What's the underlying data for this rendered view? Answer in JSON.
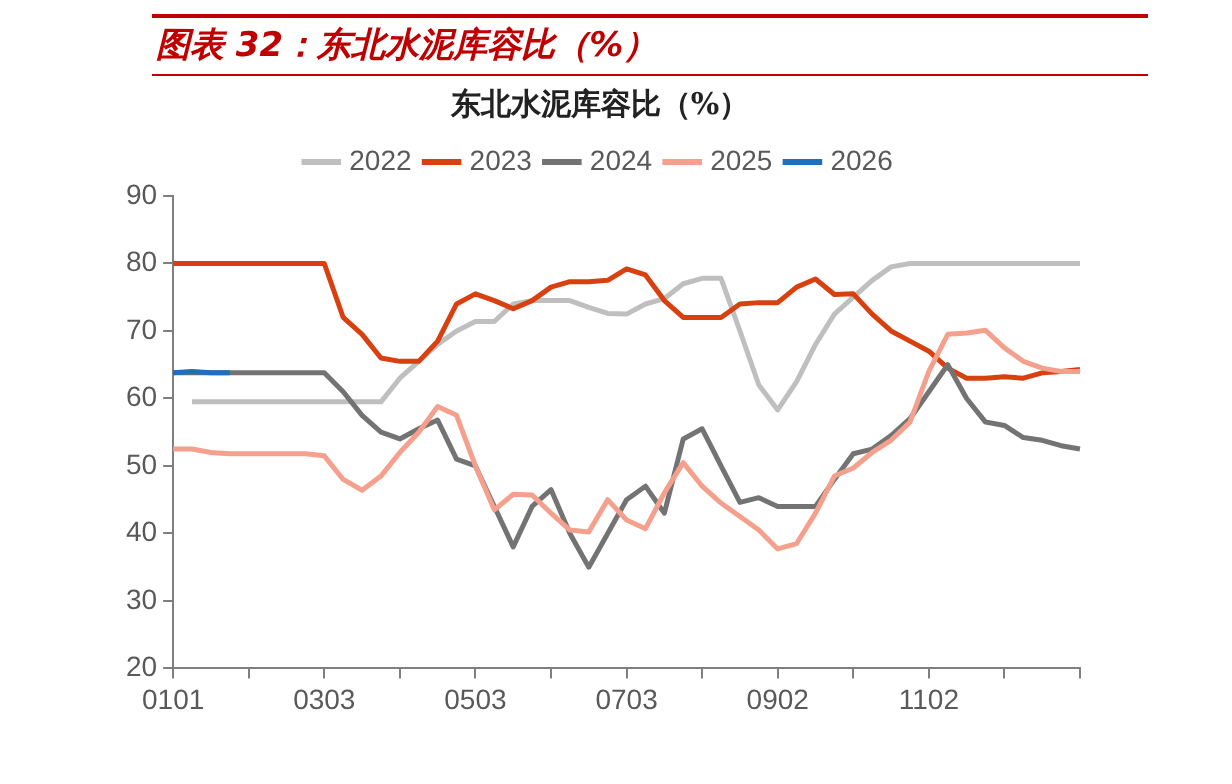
{
  "chart_data": {
    "type": "line",
    "title": "图表 32：东北水泥库容比（%）",
    "subtitle": "东北水泥库容比（%）",
    "categories": [
      "0101",
      null,
      null,
      null,
      null,
      null,
      null,
      null,
      "0303",
      null,
      null,
      null,
      null,
      null,
      null,
      null,
      "0503",
      null,
      null,
      null,
      null,
      null,
      null,
      null,
      "0703",
      null,
      null,
      null,
      null,
      null,
      null,
      null,
      "0902",
      null,
      null,
      null,
      null,
      null,
      null,
      null,
      "1102",
      null,
      null,
      null,
      null,
      null,
      null,
      null,
      null
    ],
    "ylim": [
      20,
      90
    ],
    "yticks": [
      20,
      30,
      40,
      50,
      60,
      70,
      80,
      90
    ],
    "grid": false,
    "legend": "top",
    "marker": "none",
    "line_style": "solid",
    "series": [
      {
        "name": "2022",
        "color": "#bfbfbf",
        "values": [
          null,
          59.5,
          59.5,
          59.5,
          59.5,
          59.5,
          59.5,
          59.5,
          59.5,
          59.5,
          59.5,
          59.5,
          63,
          65.5,
          68,
          70,
          71.4,
          71.4,
          74,
          74.5,
          74.5,
          74.5,
          73.5,
          72.6,
          72.5,
          74,
          74.8,
          77,
          77.8,
          77.8,
          70,
          62,
          58.3,
          62.5,
          68,
          72.5,
          75,
          77.5,
          79.5,
          80,
          80,
          80,
          80,
          80,
          80,
          80,
          80,
          80,
          80
        ]
      },
      {
        "name": "2023",
        "color": "#d9400f",
        "values": [
          80,
          80,
          80,
          80,
          80,
          80,
          80,
          80,
          80,
          72,
          69.5,
          66,
          65.5,
          65.5,
          68.5,
          74,
          75.5,
          74.5,
          73.3,
          74.5,
          76.5,
          77.3,
          77.3,
          77.5,
          79.2,
          78.3,
          74.5,
          72,
          72,
          72,
          74,
          74.2,
          74.2,
          76.5,
          77.7,
          75.4,
          75.5,
          72.5,
          70,
          68.5,
          67,
          64.5,
          63,
          63,
          63.2,
          63,
          63.8,
          64,
          64.3
        ]
      },
      {
        "name": "2024",
        "color": "#737373",
        "values": [
          63.8,
          63.8,
          63.8,
          63.8,
          63.8,
          63.8,
          63.8,
          63.8,
          63.8,
          61,
          57.5,
          55,
          54,
          55.5,
          56.8,
          51,
          50,
          44,
          38,
          44,
          46.5,
          40,
          35,
          40,
          45,
          47,
          43,
          54,
          55.5,
          50,
          44.6,
          45.3,
          44,
          44,
          44,
          48,
          51.8,
          52.5,
          54.5,
          57,
          61,
          65,
          60,
          56.5,
          56,
          54.2,
          53.8,
          53,
          52.5
        ]
      },
      {
        "name": "2025",
        "color": "#f4a08c",
        "values": [
          52.5,
          52.5,
          52,
          51.8,
          51.8,
          51.8,
          51.8,
          51.8,
          51.5,
          48,
          46.4,
          48.5,
          52,
          55,
          58.8,
          57.5,
          50,
          43.5,
          45.8,
          45.7,
          43,
          40.5,
          40.2,
          45,
          42,
          40.7,
          46,
          50.5,
          47,
          44.5,
          42.5,
          40.5,
          37.7,
          38.5,
          43,
          48.5,
          49.7,
          52,
          53.8,
          56.5,
          64,
          69.5,
          69.7,
          70.1,
          67.5,
          65.5,
          64.5,
          64,
          64
        ]
      },
      {
        "name": "2026",
        "color": "#1f6fbf",
        "values": [
          63.8,
          64,
          63.8,
          63.8,
          null,
          null,
          null,
          null,
          null,
          null,
          null,
          null,
          null,
          null,
          null,
          null,
          null,
          null,
          null,
          null,
          null,
          null,
          null,
          null,
          null,
          null,
          null,
          null,
          null,
          null,
          null,
          null,
          null,
          null,
          null,
          null,
          null,
          null,
          null,
          null,
          null,
          null,
          null,
          null,
          null,
          null,
          null,
          null,
          null
        ]
      }
    ]
  }
}
